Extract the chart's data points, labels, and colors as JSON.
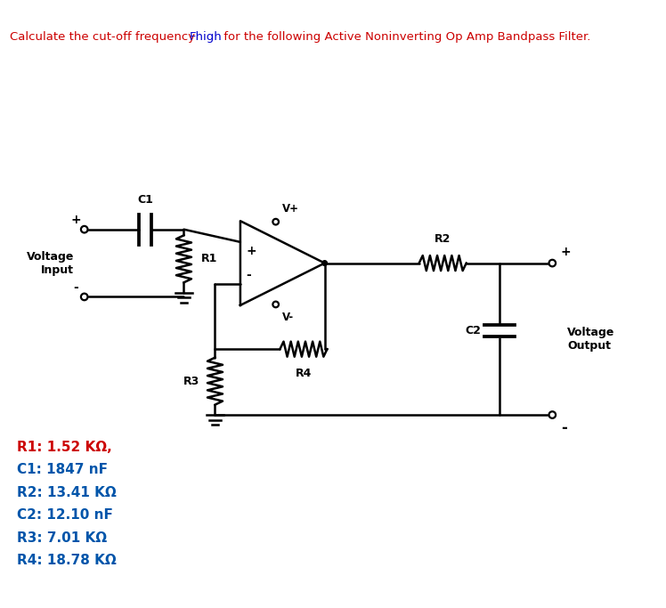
{
  "title_parts": [
    {
      "text": "Calculate the cut-off frequency ",
      "color": "#cc0000"
    },
    {
      "text": "Fhigh",
      "color": "#0000cc"
    },
    {
      "text": " for the following Active Noninverting Op Amp Bandpass Filter.",
      "color": "#cc0000"
    }
  ],
  "label_colors": {
    "R1": "#cc0000",
    "C1": "#0055aa",
    "R2": "#0055aa",
    "C2": "#0055aa",
    "R3": "#0055aa",
    "R4": "#0055aa"
  },
  "labels": [
    {
      "text": "R1: 1.52 KΩ,",
      "key": "R1"
    },
    {
      "text": "C1: 1847 nF",
      "key": "C1"
    },
    {
      "text": "R2: 13.41 KΩ",
      "key": "R2"
    },
    {
      "text": "C2: 12.10 nF",
      "key": "C2"
    },
    {
      "text": "R3: 7.01 KΩ",
      "key": "R3"
    },
    {
      "text": "R4: 18.78 KΩ",
      "key": "R4"
    }
  ],
  "background_color": "#ffffff",
  "circuit_color": "#000000",
  "label_fontsize": 11,
  "title_fontsize": 9.5
}
